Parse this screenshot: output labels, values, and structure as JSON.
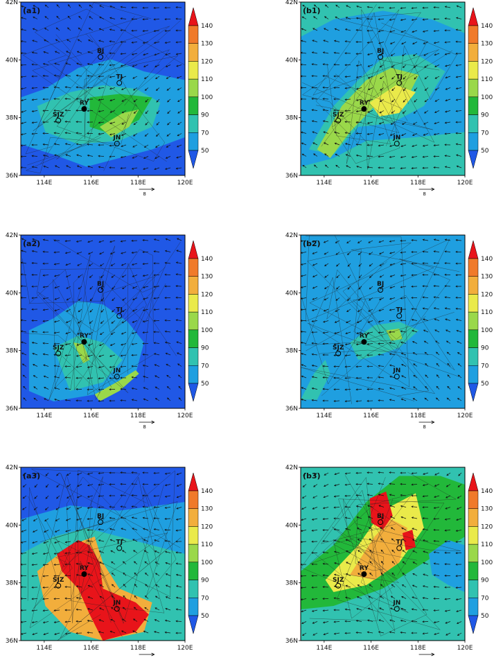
{
  "lat_labels": [
    "42N",
    "40N",
    "38N",
    "36N"
  ],
  "lon_labels": [
    "114E",
    "116E",
    "118E",
    "120E"
  ],
  "reference_vector_label": "8",
  "colorbar": {
    "levels": [
      "140",
      "130",
      "120",
      "110",
      "100",
      "90",
      "70",
      "50"
    ],
    "colors": [
      "#e8141a",
      "#f07a2a",
      "#f2ae3c",
      "#eaea4a",
      "#9ad84a",
      "#22b83a",
      "#31c2b0",
      "#1f9fe0",
      "#2058e6"
    ]
  },
  "panels": [
    {
      "id": "a1",
      "label": "(a1)"
    },
    {
      "id": "b1",
      "label": "(b1)"
    },
    {
      "id": "a2",
      "label": "(a2)"
    },
    {
      "id": "b2",
      "label": "(b2)"
    },
    {
      "id": "a3",
      "label": "(a3)"
    },
    {
      "id": "b3",
      "label": "(b3)"
    }
  ],
  "stations": [
    {
      "code": "BJ",
      "lon": 116.4,
      "lat": 40.1,
      "marker": "open"
    },
    {
      "code": "TJ",
      "lon": 117.2,
      "lat": 39.2,
      "marker": "open"
    },
    {
      "code": "RY",
      "lon": 115.7,
      "lat": 38.3,
      "marker": "filled"
    },
    {
      "code": "SJZ",
      "lon": 114.6,
      "lat": 37.9,
      "marker": "open"
    },
    {
      "code": "JN",
      "lon": 117.1,
      "lat": 37.1,
      "marker": "open"
    }
  ]
}
